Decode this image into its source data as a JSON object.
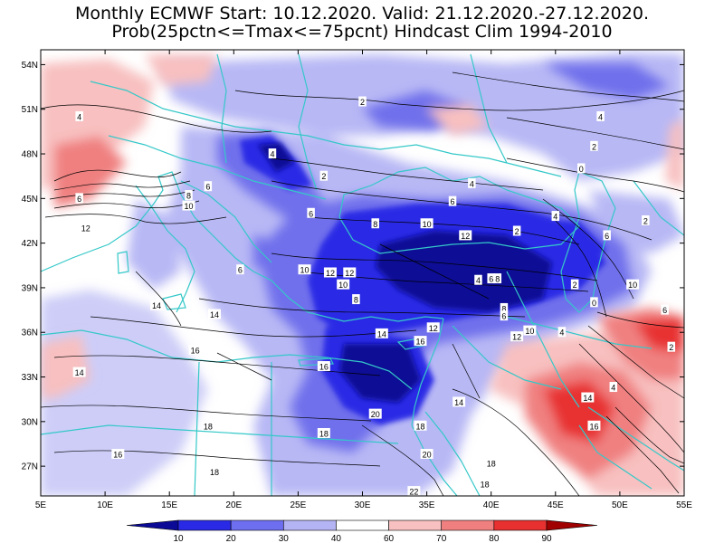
{
  "title_line1": "Monthly ECMWF Start: 10.12.2020. Valid: 21.12.2020.-27.12.2020.",
  "title_line2": "Prob(25pctn<=Tmax<=75pcnt) Hindcast Clim 1994-2010",
  "map": {
    "lon_range": [
      5,
      55
    ],
    "lat_range": [
      25,
      55
    ],
    "lon_ticks": [
      "5E",
      "10E",
      "15E",
      "20E",
      "25E",
      "30E",
      "35E",
      "40E",
      "45E",
      "50E",
      "55E"
    ],
    "lat_ticks": [
      "27N",
      "30N",
      "33N",
      "36N",
      "39N",
      "42N",
      "45N",
      "48N",
      "51N",
      "54N"
    ],
    "lat_tick_values": [
      27,
      30,
      33,
      36,
      39,
      42,
      45,
      48,
      51,
      54
    ],
    "lon_tick_values": [
      5,
      10,
      15,
      20,
      25,
      30,
      35,
      40,
      45,
      50,
      55
    ],
    "coast_color": "#35c8c8"
  },
  "legend": {
    "labels": [
      "10",
      "20",
      "30",
      "40",
      "60",
      "70",
      "80",
      "90"
    ],
    "colors": [
      "#0a0a96",
      "#2a2ae6",
      "#6e6ef0",
      "#b4b4f5",
      "#ffffff",
      "#f8c0c0",
      "#f08080",
      "#e83030",
      "#a00000"
    ]
  },
  "contour_labels": [
    {
      "text": "2",
      "lon": 30,
      "lat": 51.5
    },
    {
      "text": "4",
      "lon": 8,
      "lat": 50.5
    },
    {
      "text": "4",
      "lon": 23,
      "lat": 48
    },
    {
      "text": "2",
      "lon": 27,
      "lat": 46.5
    },
    {
      "text": "6",
      "lon": 18,
      "lat": 45.8
    },
    {
      "text": "6",
      "lon": 8,
      "lat": 45
    },
    {
      "text": "8",
      "lon": 16.5,
      "lat": 45.2
    },
    {
      "text": "10",
      "lon": 16.5,
      "lat": 44.5
    },
    {
      "text": "12",
      "lon": 8.5,
      "lat": 43
    },
    {
      "text": "6",
      "lon": 26,
      "lat": 44
    },
    {
      "text": "8",
      "lon": 31,
      "lat": 43.3
    },
    {
      "text": "10",
      "lon": 35,
      "lat": 43.3
    },
    {
      "text": "12",
      "lon": 38,
      "lat": 42.5
    },
    {
      "text": "2",
      "lon": 42,
      "lat": 42.8
    },
    {
      "text": "6",
      "lon": 49,
      "lat": 42.5
    },
    {
      "text": "4",
      "lon": 45,
      "lat": 43.8
    },
    {
      "text": "6",
      "lon": 37,
      "lat": 44.8
    },
    {
      "text": "4",
      "lon": 38.5,
      "lat": 46
    },
    {
      "text": "0",
      "lon": 47,
      "lat": 47
    },
    {
      "text": "2",
      "lon": 48,
      "lat": 48.5
    },
    {
      "text": "4",
      "lon": 48.5,
      "lat": 50.5
    },
    {
      "text": "2",
      "lon": 52,
      "lat": 43.5
    },
    {
      "text": "12",
      "lon": 27.5,
      "lat": 40
    },
    {
      "text": "12",
      "lon": 29,
      "lat": 40
    },
    {
      "text": "10",
      "lon": 28.5,
      "lat": 39.2
    },
    {
      "text": "10",
      "lon": 25.5,
      "lat": 40.2
    },
    {
      "text": "8",
      "lon": 29.5,
      "lat": 38.2
    },
    {
      "text": "6",
      "lon": 20.5,
      "lat": 40.2
    },
    {
      "text": "4",
      "lon": 39,
      "lat": 39.5
    },
    {
      "text": "6",
      "lon": 40,
      "lat": 39.6
    },
    {
      "text": "8",
      "lon": 40.5,
      "lat": 39.6
    },
    {
      "text": "2",
      "lon": 46.5,
      "lat": 39.2
    },
    {
      "text": "0",
      "lon": 48,
      "lat": 38
    },
    {
      "text": "10",
      "lon": 51,
      "lat": 39.2
    },
    {
      "text": "8",
      "lon": 41,
      "lat": 37.6
    },
    {
      "text": "6",
      "lon": 41,
      "lat": 37.1
    },
    {
      "text": "10",
      "lon": 43,
      "lat": 36.1
    },
    {
      "text": "12",
      "lon": 42,
      "lat": 35.7
    },
    {
      "text": "12",
      "lon": 35.5,
      "lat": 36.3
    },
    {
      "text": "14",
      "lon": 31.5,
      "lat": 35.9
    },
    {
      "text": "16",
      "lon": 34.5,
      "lat": 35.4
    },
    {
      "text": "4",
      "lon": 45.5,
      "lat": 36
    },
    {
      "text": "2",
      "lon": 54,
      "lat": 35
    },
    {
      "text": "14",
      "lon": 18.5,
      "lat": 37.2
    },
    {
      "text": "16",
      "lon": 17,
      "lat": 34.8
    },
    {
      "text": "16",
      "lon": 27,
      "lat": 33.7
    },
    {
      "text": "14",
      "lon": 8,
      "lat": 33.3
    },
    {
      "text": "4",
      "lon": 49.5,
      "lat": 32.3
    },
    {
      "text": "14",
      "lon": 47.5,
      "lat": 31.6
    },
    {
      "text": "14",
      "lon": 37.5,
      "lat": 31.3
    },
    {
      "text": "20",
      "lon": 31,
      "lat": 30.5
    },
    {
      "text": "18",
      "lon": 34.5,
      "lat": 29.7
    },
    {
      "text": "16",
      "lon": 48,
      "lat": 29.7
    },
    {
      "text": "18",
      "lon": 27,
      "lat": 29.2
    },
    {
      "text": "18",
      "lon": 18,
      "lat": 29.7
    },
    {
      "text": "16",
      "lon": 11,
      "lat": 27.8
    },
    {
      "text": "18",
      "lon": 18.5,
      "lat": 26.6
    },
    {
      "text": "20",
      "lon": 35,
      "lat": 27.8
    },
    {
      "text": "18",
      "lon": 40,
      "lat": 27.2
    },
    {
      "text": "18",
      "lon": 39.5,
      "lat": 25.8
    },
    {
      "text": "22",
      "lon": 34,
      "lat": 25.3
    },
    {
      "text": "6",
      "lon": 53.5,
      "lat": 37.5
    },
    {
      "text": "14",
      "lon": 14,
      "lat": 37.8
    }
  ]
}
